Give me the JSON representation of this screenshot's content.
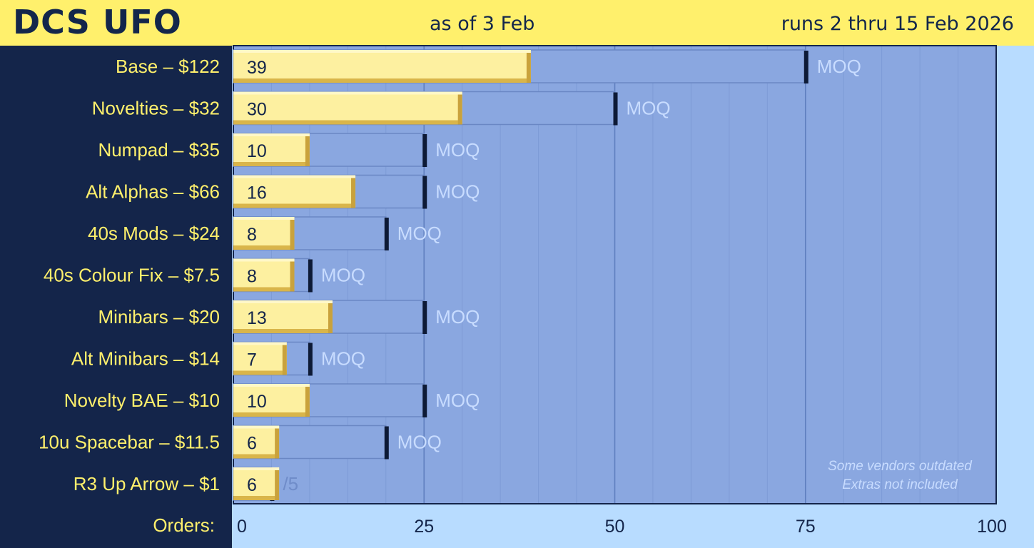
{
  "header": {
    "title": "DCS UFO",
    "as_of": "as of 3 Feb",
    "runs": "runs 2 thru 15 Feb 2026"
  },
  "colors": {
    "header_bg": "#fff06c",
    "left_panel": "#14254a",
    "plot_bg": "#8aa7e0",
    "order_bar": "#fdf0a0",
    "moq_bar": "#8aa7e0",
    "label_text": "#fff06c",
    "moq_text": "#c8dcff",
    "outside_bg": "#b8dcff"
  },
  "chart_data": {
    "type": "bar",
    "orientation": "horizontal",
    "title": "",
    "xlabel": "Orders:",
    "ylabel": "",
    "xlim": [
      0,
      100
    ],
    "xticks": [
      0,
      25,
      50,
      75,
      100
    ],
    "grid": true,
    "categories": [
      "Base – $122",
      "Novelties – $32",
      "Numpad – $35",
      "Alt Alphas – $66",
      "40s Mods – $24",
      "40s Colour Fix – $7.5",
      "Minibars – $20",
      "Alt Minibars – $14",
      "Novelty BAE – $10",
      "10u Spacebar – $11.5",
      "R3 Up Arrow – $1"
    ],
    "orders": [
      39,
      30,
      10,
      16,
      8,
      8,
      13,
      7,
      10,
      6,
      6
    ],
    "moq": [
      75,
      50,
      25,
      25,
      20,
      10,
      25,
      10,
      25,
      20,
      5
    ],
    "moq_labels": [
      "MOQ",
      "MOQ",
      "MOQ",
      "MOQ",
      "MOQ",
      "MOQ",
      "MOQ",
      "MOQ",
      "MOQ",
      "MOQ",
      "/5"
    ],
    "notes": [
      "Some vendors outdated",
      "Extras not included"
    ]
  }
}
